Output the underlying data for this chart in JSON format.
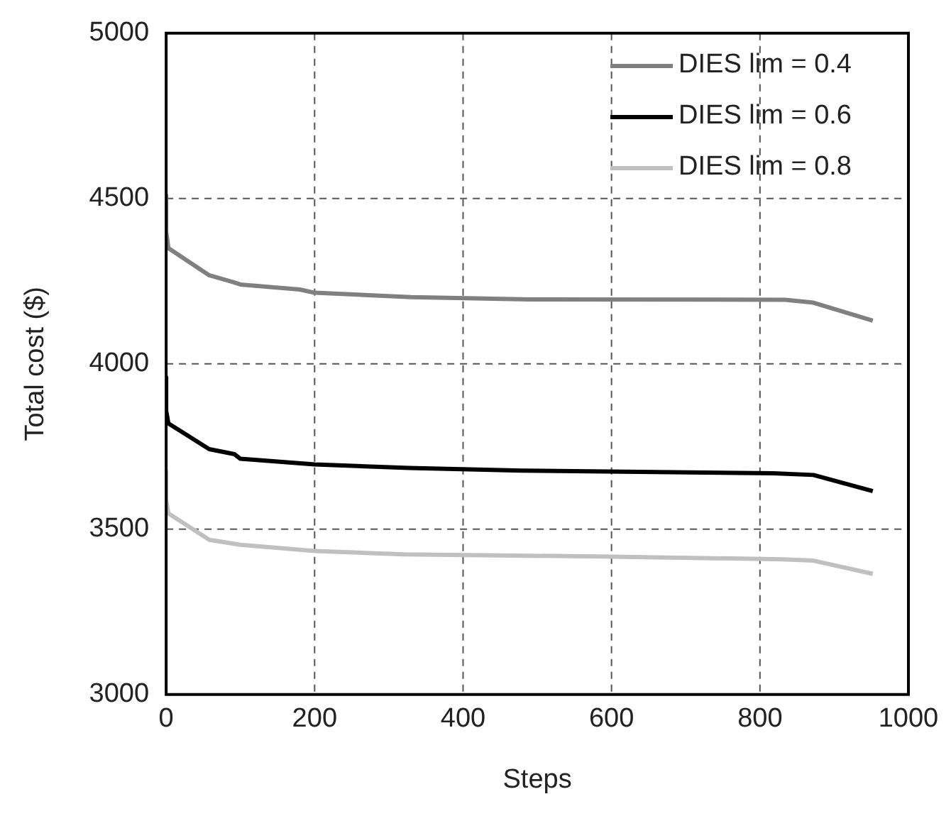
{
  "chart_data": {
    "type": "line",
    "xlabel": "Steps",
    "ylabel": "Total cost ($)",
    "xlim": [
      0,
      1000
    ],
    "xticks": [
      0,
      200,
      400,
      600,
      800,
      1000
    ],
    "ylim": [
      3000,
      5000
    ],
    "yticks": [
      3000,
      3500,
      4000,
      4500,
      5000
    ],
    "grid": true,
    "legend": "top right",
    "marker": "none",
    "line_style": "solid",
    "series": [
      {
        "name": "DIES lim = 0.4",
        "color": "#808080",
        "x": [
          0,
          0,
          3,
          58,
          92,
          100,
          180,
          200,
          330,
          490,
          834,
          872,
          952
        ],
        "values": [
          4510,
          4400,
          4350,
          4268,
          4246,
          4240,
          4225,
          4215,
          4202,
          4195,
          4194,
          4185,
          4131
        ]
      },
      {
        "name": "DIES lim = 0.6",
        "color": "#000000",
        "x": [
          0,
          0,
          3,
          58,
          92,
          100,
          200,
          327,
          480,
          818,
          872,
          952
        ],
        "values": [
          3959,
          3858,
          3820,
          3742,
          3727,
          3713,
          3696,
          3685,
          3677,
          3669,
          3664,
          3615
        ]
      },
      {
        "name": "DIES lim = 0.8",
        "color": "#c0c0c0",
        "x": [
          0,
          0,
          3,
          58,
          100,
          200,
          320,
          600,
          830,
          872,
          952
        ],
        "values": [
          3674,
          3590,
          3548,
          3468,
          3453,
          3434,
          3424,
          3417,
          3409,
          3405,
          3365
        ]
      }
    ]
  }
}
